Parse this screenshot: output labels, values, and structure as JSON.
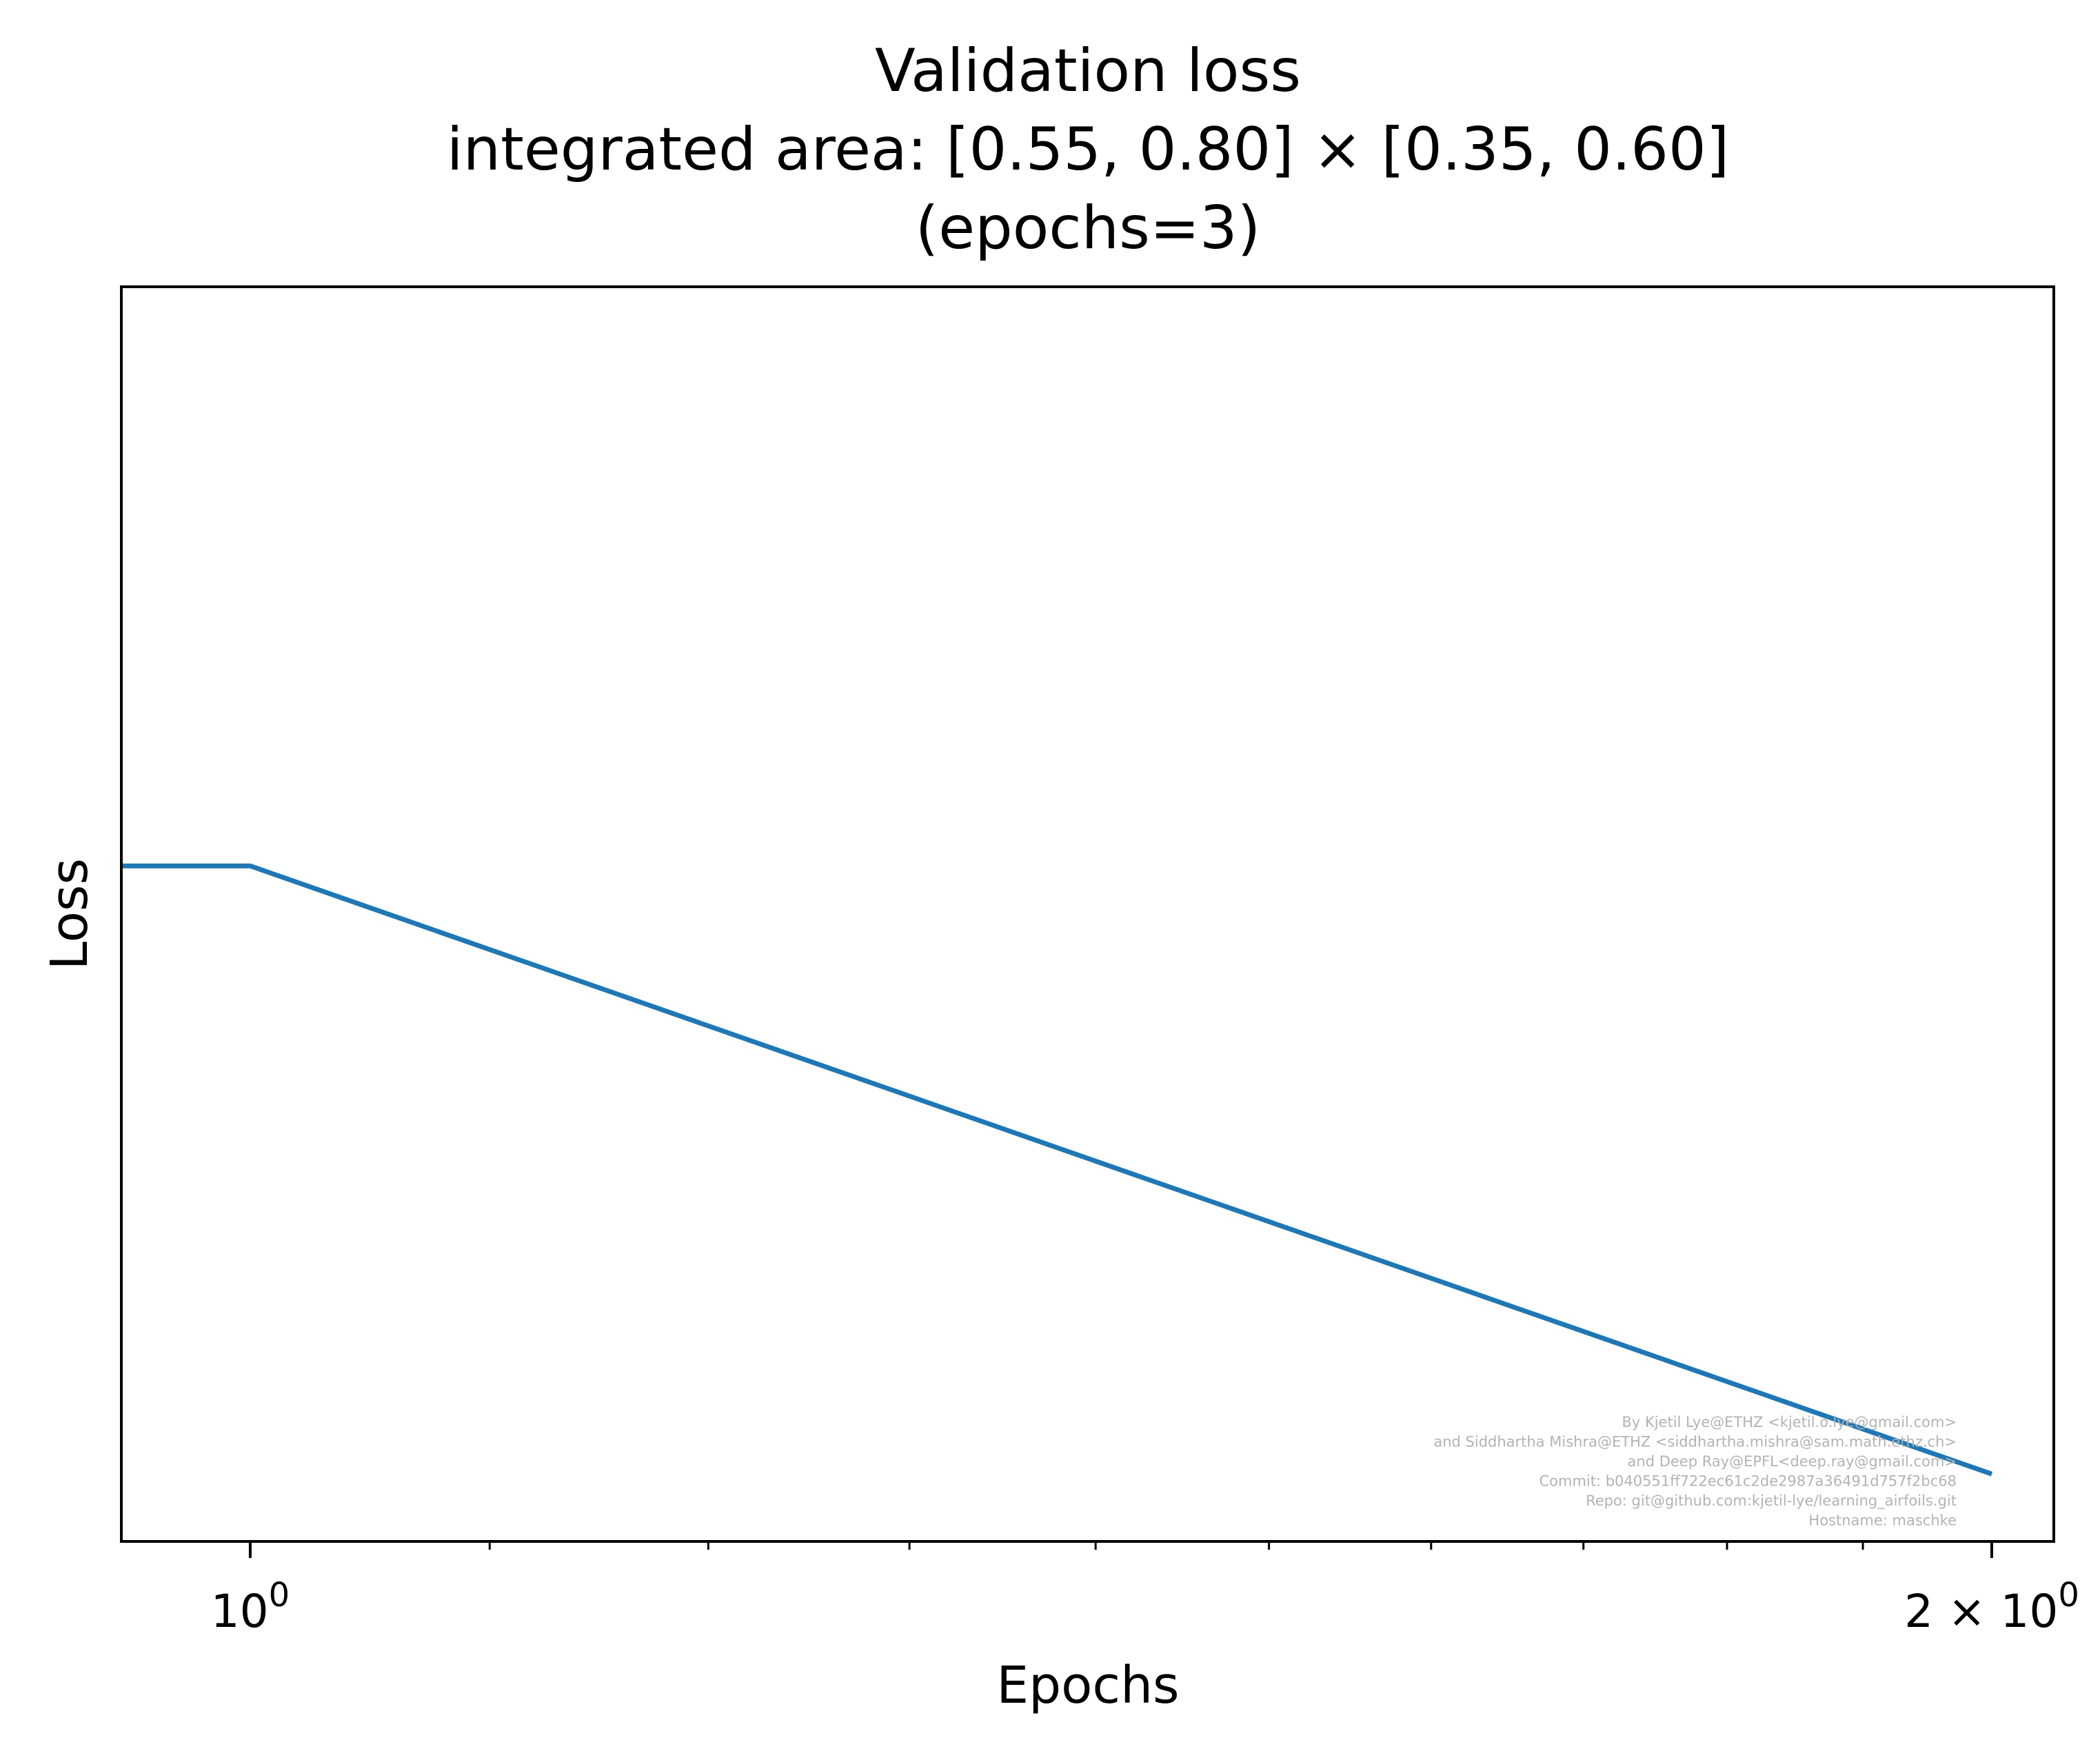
{
  "chart_data": {
    "type": "line",
    "title_lines": [
      "Validation loss",
      "integrated area: [0.55, 0.80] × [0.35, 0.60]",
      "(epochs=3)"
    ],
    "xlabel": "Epochs",
    "ylabel": "Loss",
    "x_scale": "log",
    "y_scale": "log",
    "x_ticks": [
      {
        "value": 1,
        "base": "10",
        "sup": "0"
      },
      {
        "value": 2,
        "base": "2 × 10",
        "sup": "0"
      }
    ],
    "y_ticks": [],
    "grid": false,
    "legend": "none",
    "series": [
      {
        "color": "#1f77b4",
        "x": [
          0.95,
          1,
          2
        ],
        "y": [
          0.1,
          0.1,
          0.078
        ]
      }
    ],
    "xlim": [
      0.95,
      2.05
    ],
    "ylim": [
      0.07588,
      0.1267
    ],
    "credits": [
      "By Kjetil Lye@ETHZ <kjetil.o.lye@gmail.com>",
      "and Siddhartha Mishra@ETHZ <siddhartha.mishra@sam.math.ethz.ch>",
      "and Deep Ray@EPFL<deep.ray@gmail.com>",
      "Commit: b040551ff722ec61c2de2987a36491d757f2bc68",
      "Repo: git@github.com:kjetil-lye/learning_airfoils.git",
      "Hostname: maschke"
    ]
  }
}
